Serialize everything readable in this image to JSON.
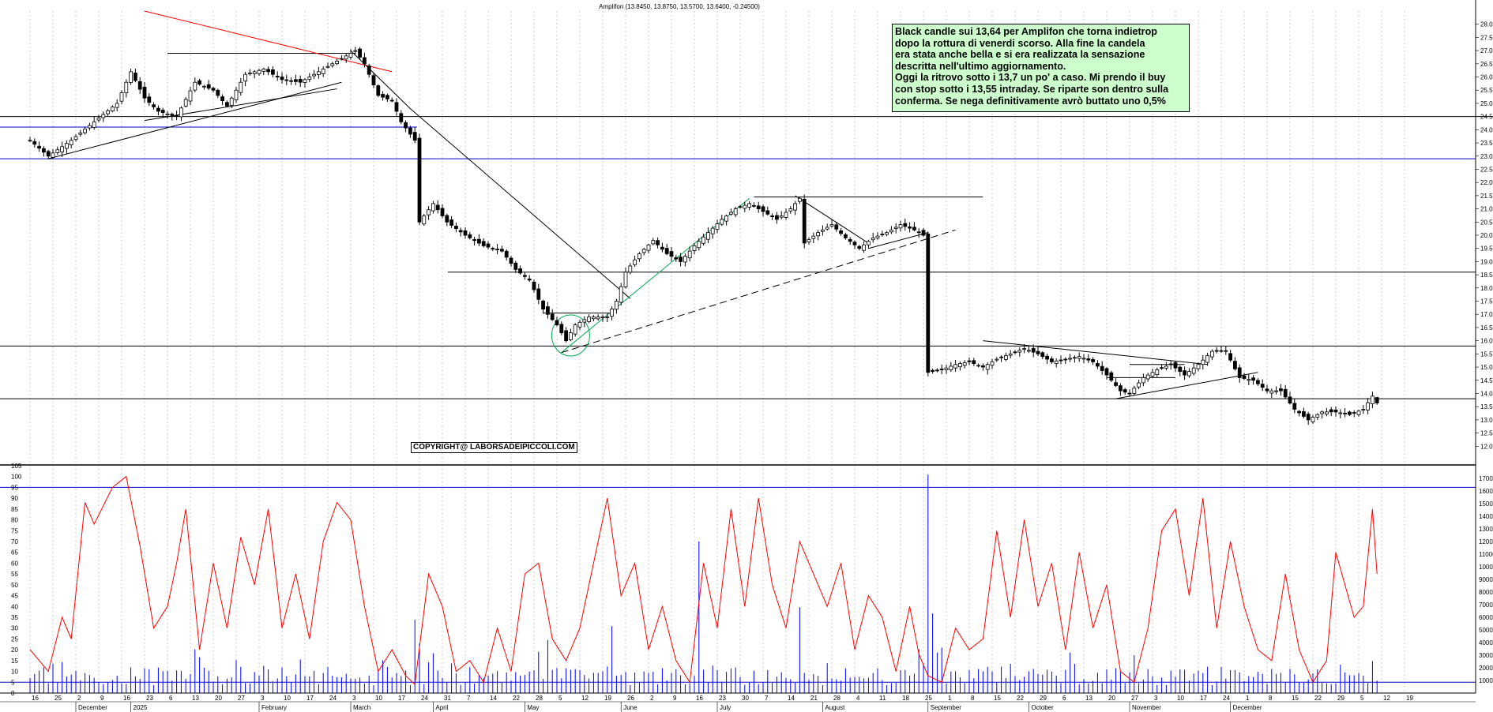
{
  "header": {
    "quote": "Amplifon (13.8450, 13.8750, 13.5700, 13.6400, -0.24500)"
  },
  "note": {
    "lines": [
      "Black candle sui 13,64 per Amplifon che torna indietrop",
      "dopo la rottura di venerdi scorso. Alla fine la candela",
      "era stata anche bella e si era realizzata la sensazione",
      "descritta nell'ultimo aggiornamento.",
      "Oggi la ritrovo sotto i 13,7 un po' a caso. Mi prendo il buy",
      "con stop sotto i 13,55 intraday. Se riparte son dentro sulla",
      "conferma. Se nega definitivamente avrò buttato uno 0,5%"
    ]
  },
  "copyright": "COPYRIGHT@ LABORSADEIPICCOLI.COM",
  "colors": {
    "price_line": "#000000",
    "blue_level": "#0000cc",
    "red_line": "#ff0000",
    "green_line": "#00aa55",
    "oscillator": "#ff0000",
    "volume": "#0000ff",
    "note_bg": "#ccffcc"
  },
  "chart_data": [
    {
      "type": "candlestick",
      "axis": {
        "ylim": [
          11.5,
          28.5
        ],
        "tick_step": 0.5,
        "side": "right",
        "grid": "vertical-dotted"
      },
      "y_ticks": [
        "12.0",
        "12.5",
        "13.0",
        "13.5",
        "14.0",
        "14.5",
        "15.0",
        "15.5",
        "16.0",
        "16.5",
        "17.0",
        "17.5",
        "18.0",
        "18.5",
        "19.0",
        "19.5",
        "20.0",
        "20.5",
        "21.0",
        "21.5",
        "22.0",
        "22.5",
        "23.0",
        "23.5",
        "24.0",
        "24.5",
        "25.0",
        "25.5",
        "26.0",
        "26.5",
        "27.0",
        "27.5",
        "28.0"
      ],
      "anchors": [
        {
          "i": 0,
          "c": 23.6
        },
        {
          "i": 4,
          "c": 23.0
        },
        {
          "i": 9,
          "c": 23.6
        },
        {
          "i": 14,
          "c": 24.3
        },
        {
          "i": 19,
          "c": 25.0
        },
        {
          "i": 22,
          "c": 26.2
        },
        {
          "i": 25,
          "c": 25.2
        },
        {
          "i": 28,
          "c": 24.7
        },
        {
          "i": 32,
          "c": 24.5
        },
        {
          "i": 36,
          "c": 25.8
        },
        {
          "i": 40,
          "c": 25.5
        },
        {
          "i": 43,
          "c": 24.9
        },
        {
          "i": 47,
          "c": 26.1
        },
        {
          "i": 51,
          "c": 26.3
        },
        {
          "i": 55,
          "c": 25.9
        },
        {
          "i": 59,
          "c": 25.8
        },
        {
          "i": 63,
          "c": 26.2
        },
        {
          "i": 67,
          "c": 26.6
        },
        {
          "i": 71,
          "c": 27.0
        },
        {
          "i": 73,
          "c": 26.5
        },
        {
          "i": 76,
          "c": 25.3
        },
        {
          "i": 79,
          "c": 25.1
        },
        {
          "i": 81,
          "c": 24.3
        },
        {
          "i": 84,
          "c": 23.6
        },
        {
          "i": 85,
          "c": 20.5
        },
        {
          "i": 88,
          "c": 21.2
        },
        {
          "i": 91,
          "c": 20.5
        },
        {
          "i": 95,
          "c": 20.0
        },
        {
          "i": 99,
          "c": 19.6
        },
        {
          "i": 103,
          "c": 19.4
        },
        {
          "i": 106,
          "c": 18.7
        },
        {
          "i": 109,
          "c": 18.3
        },
        {
          "i": 112,
          "c": 17.2
        },
        {
          "i": 115,
          "c": 16.6
        },
        {
          "i": 117,
          "c": 16.0
        },
        {
          "i": 119,
          "c": 16.6
        },
        {
          "i": 122,
          "c": 16.9
        },
        {
          "i": 126,
          "c": 16.9
        },
        {
          "i": 128,
          "c": 17.5
        },
        {
          "i": 130,
          "c": 18.6
        },
        {
          "i": 133,
          "c": 19.3
        },
        {
          "i": 136,
          "c": 19.8
        },
        {
          "i": 139,
          "c": 19.3
        },
        {
          "i": 142,
          "c": 19.0
        },
        {
          "i": 145,
          "c": 19.6
        },
        {
          "i": 148,
          "c": 20.1
        },
        {
          "i": 151,
          "c": 20.6
        },
        {
          "i": 154,
          "c": 21.0
        },
        {
          "i": 157,
          "c": 21.2
        },
        {
          "i": 160,
          "c": 20.9
        },
        {
          "i": 163,
          "c": 20.6
        },
        {
          "i": 166,
          "c": 21.0
        },
        {
          "i": 168,
          "c": 21.4
        },
        {
          "i": 169,
          "c": 19.7
        },
        {
          "i": 172,
          "c": 20.1
        },
        {
          "i": 175,
          "c": 20.4
        },
        {
          "i": 178,
          "c": 19.9
        },
        {
          "i": 181,
          "c": 19.5
        },
        {
          "i": 184,
          "c": 19.9
        },
        {
          "i": 187,
          "c": 20.1
        },
        {
          "i": 190,
          "c": 20.4
        },
        {
          "i": 193,
          "c": 20.2
        },
        {
          "i": 195,
          "c": 20.0
        },
        {
          "i": 196,
          "c": 14.8
        },
        {
          "i": 199,
          "c": 14.9
        },
        {
          "i": 202,
          "c": 15.1
        },
        {
          "i": 205,
          "c": 15.2
        },
        {
          "i": 208,
          "c": 15.0
        },
        {
          "i": 211,
          "c": 15.3
        },
        {
          "i": 214,
          "c": 15.5
        },
        {
          "i": 217,
          "c": 15.7
        },
        {
          "i": 220,
          "c": 15.5
        },
        {
          "i": 223,
          "c": 15.2
        },
        {
          "i": 226,
          "c": 15.3
        },
        {
          "i": 229,
          "c": 15.4
        },
        {
          "i": 232,
          "c": 15.2
        },
        {
          "i": 235,
          "c": 14.7
        },
        {
          "i": 238,
          "c": 14.1
        },
        {
          "i": 240,
          "c": 14.0
        },
        {
          "i": 243,
          "c": 14.6
        },
        {
          "i": 246,
          "c": 14.9
        },
        {
          "i": 249,
          "c": 15.1
        },
        {
          "i": 252,
          "c": 14.7
        },
        {
          "i": 255,
          "c": 15.1
        },
        {
          "i": 258,
          "c": 15.6
        },
        {
          "i": 261,
          "c": 15.6
        },
        {
          "i": 264,
          "c": 14.6
        },
        {
          "i": 267,
          "c": 14.5
        },
        {
          "i": 270,
          "c": 14.1
        },
        {
          "i": 273,
          "c": 14.1
        },
        {
          "i": 276,
          "c": 13.4
        },
        {
          "i": 279,
          "c": 13.0
        },
        {
          "i": 282,
          "c": 13.3
        },
        {
          "i": 285,
          "c": 13.3
        },
        {
          "i": 288,
          "c": 13.2
        },
        {
          "i": 291,
          "c": 13.4
        },
        {
          "i": 293,
          "c": 13.9
        },
        {
          "i": 294,
          "c": 13.64
        }
      ],
      "last_candle": {
        "open": 13.845,
        "high": 13.875,
        "low": 13.57,
        "close": 13.64
      }
    },
    {
      "type": "line+bar",
      "left_axis": {
        "ylim": [
          0,
          105
        ],
        "ticks": [
          "0",
          "5",
          "10",
          "15",
          "20",
          "25",
          "30",
          "35",
          "40",
          "45",
          "50",
          "55",
          "60",
          "65",
          "70",
          "75",
          "80",
          "85",
          "90",
          "95",
          "100",
          "105"
        ]
      },
      "right_axis": {
        "ylim": [
          0,
          18000
        ],
        "ticks": [
          "1000",
          "2000",
          "3000",
          "4000",
          "5000",
          "6000",
          "7000",
          "8000",
          "9000",
          "10000",
          "11000",
          "12000",
          "13000",
          "14000",
          "15000",
          "16000",
          "17000"
        ]
      },
      "oscillator_levels": [
        5,
        95
      ],
      "oscillator": [
        {
          "i": 0,
          "v": 20
        },
        {
          "i": 4,
          "v": 10
        },
        {
          "i": 7,
          "v": 35
        },
        {
          "i": 9,
          "v": 25
        },
        {
          "i": 12,
          "v": 88
        },
        {
          "i": 14,
          "v": 78
        },
        {
          "i": 18,
          "v": 95
        },
        {
          "i": 21,
          "v": 100
        },
        {
          "i": 24,
          "v": 68
        },
        {
          "i": 27,
          "v": 30
        },
        {
          "i": 30,
          "v": 40
        },
        {
          "i": 32,
          "v": 60
        },
        {
          "i": 34,
          "v": 85
        },
        {
          "i": 37,
          "v": 20
        },
        {
          "i": 40,
          "v": 60
        },
        {
          "i": 43,
          "v": 30
        },
        {
          "i": 46,
          "v": 72
        },
        {
          "i": 49,
          "v": 50
        },
        {
          "i": 52,
          "v": 85
        },
        {
          "i": 55,
          "v": 30
        },
        {
          "i": 58,
          "v": 55
        },
        {
          "i": 61,
          "v": 25
        },
        {
          "i": 64,
          "v": 70
        },
        {
          "i": 67,
          "v": 88
        },
        {
          "i": 70,
          "v": 80
        },
        {
          "i": 73,
          "v": 40
        },
        {
          "i": 76,
          "v": 10
        },
        {
          "i": 79,
          "v": 20
        },
        {
          "i": 82,
          "v": 8
        },
        {
          "i": 84,
          "v": 4
        },
        {
          "i": 87,
          "v": 55
        },
        {
          "i": 90,
          "v": 40
        },
        {
          "i": 93,
          "v": 10
        },
        {
          "i": 96,
          "v": 15
        },
        {
          "i": 99,
          "v": 5
        },
        {
          "i": 102,
          "v": 30
        },
        {
          "i": 105,
          "v": 10
        },
        {
          "i": 108,
          "v": 55
        },
        {
          "i": 111,
          "v": 60
        },
        {
          "i": 114,
          "v": 25
        },
        {
          "i": 117,
          "v": 15
        },
        {
          "i": 120,
          "v": 30
        },
        {
          "i": 123,
          "v": 60
        },
        {
          "i": 126,
          "v": 90
        },
        {
          "i": 129,
          "v": 45
        },
        {
          "i": 132,
          "v": 60
        },
        {
          "i": 135,
          "v": 20
        },
        {
          "i": 138,
          "v": 40
        },
        {
          "i": 141,
          "v": 15
        },
        {
          "i": 144,
          "v": 5
        },
        {
          "i": 147,
          "v": 60
        },
        {
          "i": 150,
          "v": 30
        },
        {
          "i": 153,
          "v": 85
        },
        {
          "i": 156,
          "v": 40
        },
        {
          "i": 159,
          "v": 90
        },
        {
          "i": 162,
          "v": 50
        },
        {
          "i": 165,
          "v": 30
        },
        {
          "i": 168,
          "v": 70
        },
        {
          "i": 171,
          "v": 55
        },
        {
          "i": 174,
          "v": 40
        },
        {
          "i": 177,
          "v": 60
        },
        {
          "i": 180,
          "v": 20
        },
        {
          "i": 183,
          "v": 45
        },
        {
          "i": 186,
          "v": 35
        },
        {
          "i": 189,
          "v": 10
        },
        {
          "i": 192,
          "v": 40
        },
        {
          "i": 194,
          "v": 18
        },
        {
          "i": 196,
          "v": 8
        },
        {
          "i": 199,
          "v": 5
        },
        {
          "i": 202,
          "v": 30
        },
        {
          "i": 205,
          "v": 20
        },
        {
          "i": 208,
          "v": 25
        },
        {
          "i": 211,
          "v": 75
        },
        {
          "i": 214,
          "v": 35
        },
        {
          "i": 217,
          "v": 80
        },
        {
          "i": 220,
          "v": 40
        },
        {
          "i": 223,
          "v": 60
        },
        {
          "i": 226,
          "v": 20
        },
        {
          "i": 229,
          "v": 65
        },
        {
          "i": 232,
          "v": 30
        },
        {
          "i": 235,
          "v": 50
        },
        {
          "i": 238,
          "v": 10
        },
        {
          "i": 241,
          "v": 5
        },
        {
          "i": 244,
          "v": 30
        },
        {
          "i": 247,
          "v": 75
        },
        {
          "i": 250,
          "v": 85
        },
        {
          "i": 253,
          "v": 45
        },
        {
          "i": 256,
          "v": 90
        },
        {
          "i": 259,
          "v": 30
        },
        {
          "i": 262,
          "v": 70
        },
        {
          "i": 265,
          "v": 40
        },
        {
          "i": 268,
          "v": 20
        },
        {
          "i": 271,
          "v": 15
        },
        {
          "i": 274,
          "v": 55
        },
        {
          "i": 277,
          "v": 20
        },
        {
          "i": 280,
          "v": 5
        },
        {
          "i": 283,
          "v": 15
        },
        {
          "i": 285,
          "v": 65
        },
        {
          "i": 287,
          "v": 50
        },
        {
          "i": 289,
          "v": 35
        },
        {
          "i": 291,
          "v": 40
        },
        {
          "i": 293,
          "v": 85
        },
        {
          "i": 294,
          "v": 55
        }
      ],
      "volume_spikes": [
        {
          "i": 84,
          "v": 5800
        },
        {
          "i": 85,
          "v": 3900
        },
        {
          "i": 113,
          "v": 4200
        },
        {
          "i": 126,
          "v": 2100
        },
        {
          "i": 127,
          "v": 5300
        },
        {
          "i": 146,
          "v": 12000
        },
        {
          "i": 168,
          "v": 6800
        },
        {
          "i": 196,
          "v": 17300
        },
        {
          "i": 197,
          "v": 6300
        },
        {
          "i": 198,
          "v": 3200
        },
        {
          "i": 199,
          "v": 3600
        }
      ]
    }
  ],
  "x_axis": {
    "day_labels": [
      {
        "i": 0,
        "t": "16"
      },
      {
        "i": 5,
        "t": "25"
      },
      {
        "i": 10,
        "t": "2"
      },
      {
        "i": 15,
        "t": "9"
      },
      {
        "i": 20,
        "t": "16"
      },
      {
        "i": 25,
        "t": "23"
      },
      {
        "i": 30,
        "t": "6"
      },
      {
        "i": 35,
        "t": "13"
      },
      {
        "i": 40,
        "t": "20"
      },
      {
        "i": 45,
        "t": "27"
      },
      {
        "i": 50,
        "t": "3"
      },
      {
        "i": 55,
        "t": "10"
      },
      {
        "i": 60,
        "t": "17"
      },
      {
        "i": 65,
        "t": "24"
      },
      {
        "i": 70,
        "t": "3"
      },
      {
        "i": 75,
        "t": "10"
      },
      {
        "i": 80,
        "t": "17"
      },
      {
        "i": 85,
        "t": "24"
      },
      {
        "i": 90,
        "t": "31"
      },
      {
        "i": 95,
        "t": "7"
      },
      {
        "i": 100,
        "t": "14"
      },
      {
        "i": 105,
        "t": "22"
      },
      {
        "i": 110,
        "t": "28"
      },
      {
        "i": 115,
        "t": "5"
      },
      {
        "i": 120,
        "t": "12"
      },
      {
        "i": 125,
        "t": "19"
      },
      {
        "i": 130,
        "t": "26"
      },
      {
        "i": 135,
        "t": "2"
      },
      {
        "i": 140,
        "t": "9"
      },
      {
        "i": 145,
        "t": "16"
      },
      {
        "i": 150,
        "t": "23"
      },
      {
        "i": 155,
        "t": "30"
      },
      {
        "i": 160,
        "t": "7"
      },
      {
        "i": 165,
        "t": "14"
      },
      {
        "i": 170,
        "t": "21"
      },
      {
        "i": 175,
        "t": "28"
      },
      {
        "i": 180,
        "t": "4"
      },
      {
        "i": 185,
        "t": "11"
      },
      {
        "i": 190,
        "t": "18"
      },
      {
        "i": 195,
        "t": "25"
      },
      {
        "i": 200,
        "t": "1"
      },
      {
        "i": 205,
        "t": "8"
      },
      {
        "i": 210,
        "t": "15"
      },
      {
        "i": 215,
        "t": "22"
      },
      {
        "i": 220,
        "t": "29"
      },
      {
        "i": 225,
        "t": "6"
      },
      {
        "i": 230,
        "t": "13"
      },
      {
        "i": 235,
        "t": "20"
      },
      {
        "i": 240,
        "t": "27"
      },
      {
        "i": 245,
        "t": "3"
      },
      {
        "i": 250,
        "t": "10"
      },
      {
        "i": 255,
        "t": "17"
      },
      {
        "i": 260,
        "t": "24"
      },
      {
        "i": 265,
        "t": "1"
      },
      {
        "i": 270,
        "t": "8"
      },
      {
        "i": 275,
        "t": "15"
      },
      {
        "i": 280,
        "t": "22"
      },
      {
        "i": 285,
        "t": "29"
      },
      {
        "i": 290,
        "t": "5"
      },
      {
        "i": 295,
        "t": "12"
      },
      {
        "i": 300,
        "t": "19"
      }
    ],
    "month_labels": [
      {
        "i": 10,
        "t": "December"
      },
      {
        "i": 22,
        "t": "2025"
      },
      {
        "i": 50,
        "t": "February"
      },
      {
        "i": 70,
        "t": "March"
      },
      {
        "i": 88,
        "t": "April"
      },
      {
        "i": 108,
        "t": "May"
      },
      {
        "i": 129,
        "t": "June"
      },
      {
        "i": 150,
        "t": "July"
      },
      {
        "i": 173,
        "t": "August"
      },
      {
        "i": 196,
        "t": "September"
      },
      {
        "i": 218,
        "t": "October"
      },
      {
        "i": 240,
        "t": "November"
      },
      {
        "i": 262,
        "t": "December"
      }
    ]
  }
}
